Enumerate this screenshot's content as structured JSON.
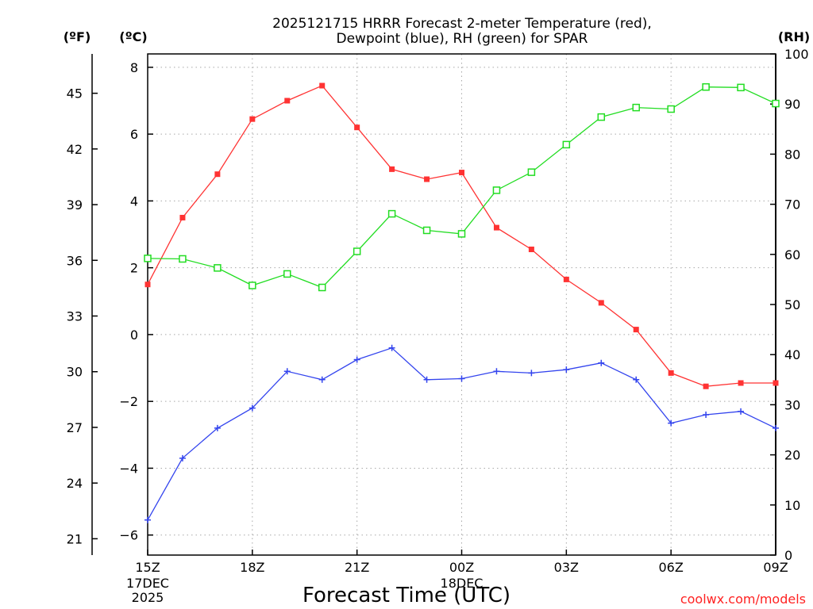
{
  "chart_data": {
    "type": "line",
    "title_line1": "2025121715 HRRR Forecast 2-meter Temperature (red),",
    "title_line2": "Dewpoint (blue), RH (green) for SPAR",
    "xlabel": "Forecast Time (UTC)",
    "credit": "coolwx.com/models",
    "unit_f": "(ºF)",
    "unit_c": "(ºC)",
    "unit_rh": "(RH)",
    "x_ticks": [
      {
        "hour": 0,
        "label": "15Z",
        "sub1": "17DEC",
        "sub2": "2025"
      },
      {
        "hour": 3,
        "label": "18Z"
      },
      {
        "hour": 6,
        "label": "21Z"
      },
      {
        "hour": 9,
        "label": "00Z",
        "sub1": "18DEC"
      },
      {
        "hour": 12,
        "label": "03Z"
      },
      {
        "hour": 15,
        "label": "06Z"
      },
      {
        "hour": 18,
        "label": "09Z"
      }
    ],
    "xlim": [
      0,
      18
    ],
    "ylim_c": [
      -6.6,
      8.4
    ],
    "yticks_c": [
      8,
      6,
      4,
      2,
      0,
      -2,
      -4,
      -6
    ],
    "ytick_labels_c": [
      "8",
      "6",
      "4",
      "2",
      "0",
      "−2",
      "−4",
      "−6"
    ],
    "yticks_f": [
      45,
      42,
      39,
      36,
      33,
      30,
      27,
      24,
      21
    ],
    "yticks_rh": [
      100,
      90,
      80,
      70,
      60,
      50,
      40,
      30,
      20,
      10,
      0
    ],
    "ylim_rh": [
      0,
      100
    ],
    "grid": true,
    "series": [
      {
        "name": "2-meter Temperature",
        "unit": "C",
        "color": "#ff3333",
        "marker": "filled-square",
        "hours": [
          0,
          1,
          2,
          3,
          4,
          5,
          6,
          7,
          8,
          9,
          10,
          11,
          12,
          13,
          14,
          15,
          16,
          17,
          18
        ],
        "values": [
          1.5,
          3.5,
          4.8,
          6.45,
          7.0,
          7.45,
          6.2,
          4.95,
          4.65,
          4.85,
          3.2,
          2.55,
          1.65,
          0.95,
          0.15,
          -1.15,
          -1.55,
          -1.45,
          -1.45
        ]
      },
      {
        "name": "Dewpoint",
        "unit": "C",
        "color": "#3344ee",
        "marker": "plus",
        "hours": [
          0,
          1,
          2,
          3,
          4,
          5,
          6,
          7,
          8,
          9,
          10,
          11,
          12,
          13,
          14,
          15,
          16,
          17,
          18
        ],
        "values": [
          -5.55,
          -3.7,
          -2.8,
          -2.2,
          -1.1,
          -1.35,
          -0.75,
          -0.4,
          -1.35,
          -1.32,
          -1.1,
          -1.15,
          -1.05,
          -0.85,
          -1.35,
          -2.65,
          -2.4,
          -2.3,
          -2.8
        ]
      },
      {
        "name": "Relative Humidity",
        "unit": "%",
        "color": "#22dd22",
        "marker": "open-square",
        "hours": [
          0,
          1,
          2,
          3,
          4,
          5,
          6,
          7,
          8,
          9,
          10,
          11,
          12,
          13,
          14,
          15,
          16,
          17,
          18
        ],
        "values": [
          59.2,
          59.1,
          57.3,
          53.8,
          56.1,
          53.4,
          60.6,
          68.1,
          64.8,
          64.1,
          72.8,
          76.4,
          81.9,
          87.4,
          89.3,
          89.0,
          93.4,
          93.3,
          90.1
        ]
      }
    ]
  }
}
